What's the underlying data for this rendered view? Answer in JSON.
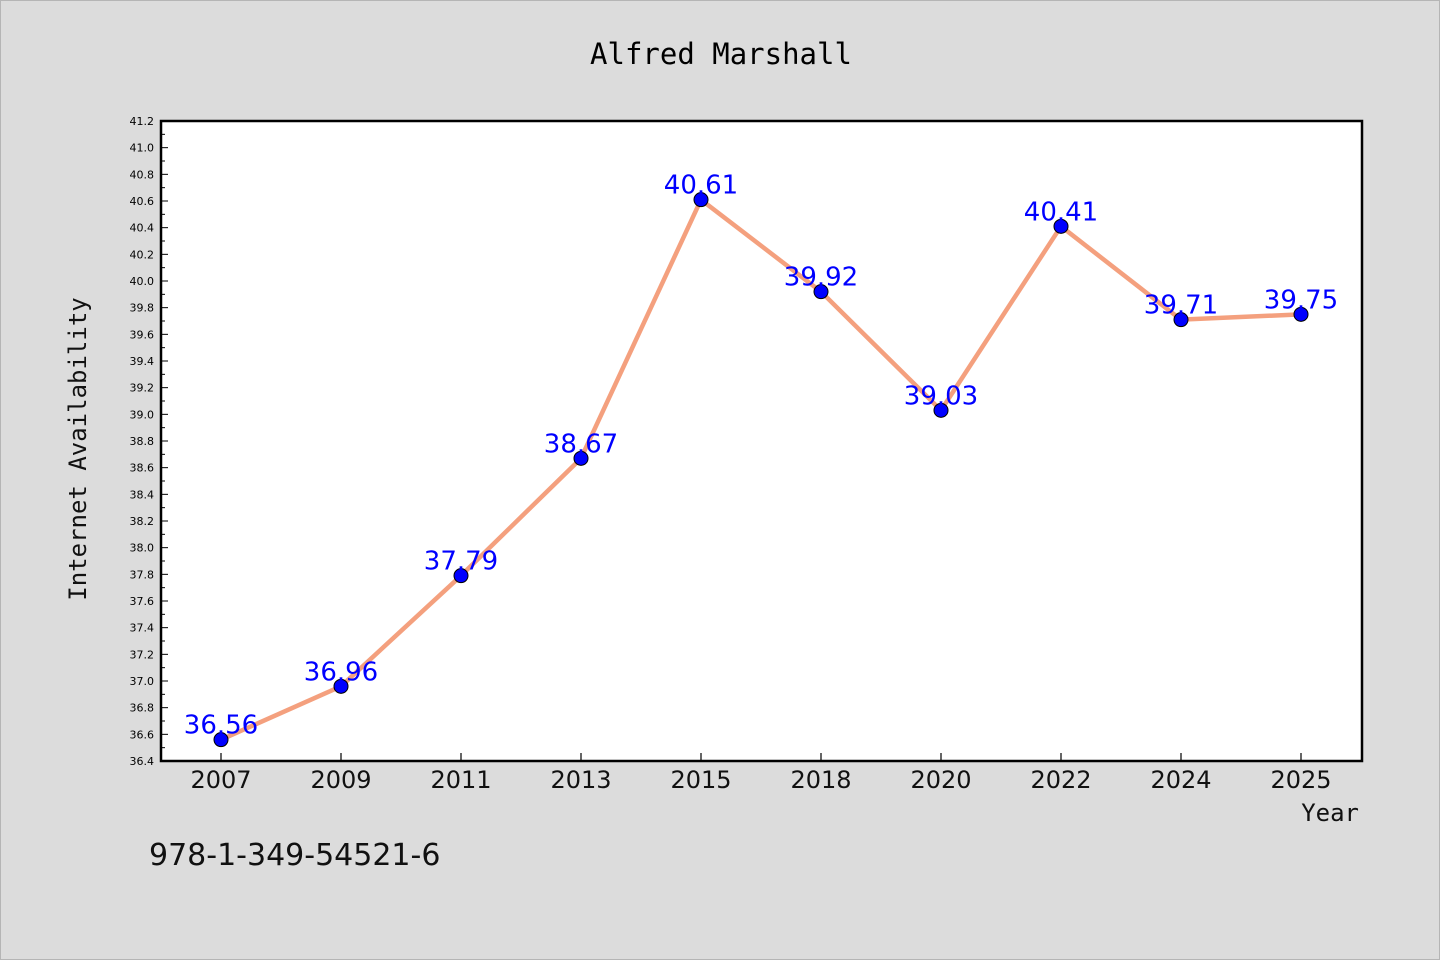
{
  "chart_data": {
    "type": "line",
    "title": "Alfred Marshall",
    "xlabel": "Year",
    "ylabel": "Internet Availability",
    "categories": [
      "2007",
      "2009",
      "2011",
      "2013",
      "2015",
      "2018",
      "2020",
      "2022",
      "2024",
      "2025"
    ],
    "values": [
      36.56,
      36.96,
      37.79,
      38.67,
      40.61,
      39.92,
      39.03,
      40.41,
      39.71,
      39.75
    ],
    "data_labels": [
      "36.56",
      "36.96",
      "37.79",
      "38.67",
      "40.61",
      "39.92",
      "39.03",
      "40.41",
      "39.71",
      "39.75"
    ],
    "ylim": [
      36.4,
      41.2
    ],
    "ytick_step": 0.2,
    "grid": false,
    "line_color": "#f4a07e",
    "marker_color": "#0000ff",
    "label_color": "#0000ff"
  },
  "annotation": {
    "text": "978-1-349-54521-6"
  }
}
